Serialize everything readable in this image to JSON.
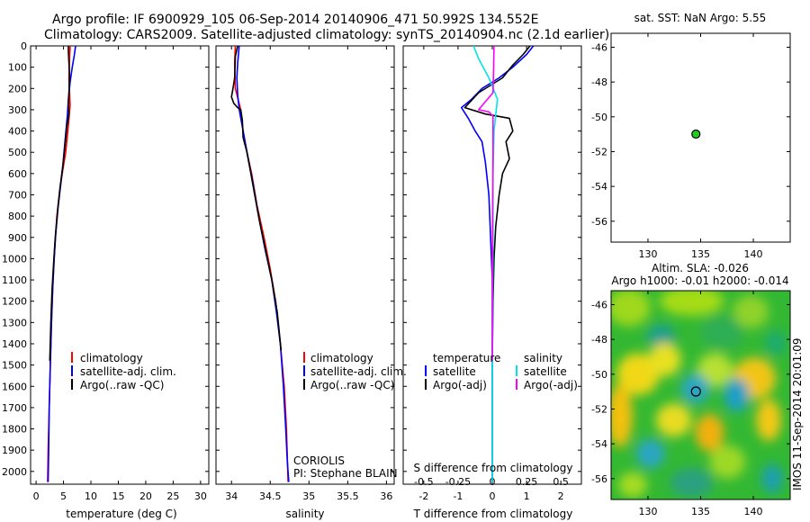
{
  "figure": {
    "title_line1": "Argo profile: IF 6900929_105 06-Sep-2014 20140906_471 50.992S 134.552E",
    "title_line2": "Climatology: CARS2009. Satellite-adjusted climatology: synTS_20140904.nc (2.1d earlier)",
    "side_stamp": "IMOS 11-Sep-2014 20:01:09",
    "colors": {
      "black": "#000000",
      "red": "#ff0000",
      "blue": "#0000ff",
      "cyan": "#00e5e5",
      "magenta": "#ff00ff",
      "green": "#22cc22"
    }
  },
  "chart_data": [
    {
      "id": "temperature",
      "type": "line",
      "xlabel": "temperature (deg C)",
      "ylabel": "",
      "xlim": [
        -1,
        31.5
      ],
      "ylim": [
        2060,
        0
      ],
      "xticks": [
        "0",
        "5",
        "10",
        "15",
        "20",
        "25",
        "30"
      ],
      "xtick_values": [
        0,
        5,
        10,
        15,
        20,
        25,
        30
      ],
      "yticks": [
        "0",
        "100",
        "200",
        "300",
        "400",
        "500",
        "600",
        "700",
        "800",
        "900",
        "1000",
        "1100",
        "1200",
        "1300",
        "1400",
        "1500",
        "1600",
        "1700",
        "1800",
        "1900",
        "2000"
      ],
      "legend": [
        "climatology",
        "satellite-adj. clim.",
        "Argo(..raw -QC)"
      ],
      "series": [
        {
          "name": "climatology",
          "color": "red",
          "points": [
            [
              6.2,
              0
            ],
            [
              6.1,
              60
            ],
            [
              6.0,
              150
            ],
            [
              6.2,
              280
            ],
            [
              5.8,
              400
            ],
            [
              5.4,
              500
            ],
            [
              4.9,
              580
            ],
            [
              4.3,
              680
            ],
            [
              3.8,
              800
            ],
            [
              3.4,
              950
            ],
            [
              3.1,
              1100
            ],
            [
              2.8,
              1300
            ],
            [
              2.6,
              1500
            ],
            [
              2.4,
              1700
            ],
            [
              2.2,
              1900
            ],
            [
              2.1,
              2050
            ]
          ]
        },
        {
          "name": "satellite-adj. clim.",
          "color": "blue",
          "points": [
            [
              7.2,
              0
            ],
            [
              7.0,
              40
            ],
            [
              6.6,
              100
            ],
            [
              6.2,
              170
            ],
            [
              5.9,
              250
            ],
            [
              5.7,
              330
            ],
            [
              5.3,
              440
            ],
            [
              4.9,
              560
            ],
            [
              4.5,
              650
            ],
            [
              4.0,
              760
            ],
            [
              3.6,
              880
            ],
            [
              3.3,
              1000
            ],
            [
              3.0,
              1150
            ],
            [
              2.8,
              1300
            ],
            [
              2.6,
              1500
            ],
            [
              2.4,
              1700
            ],
            [
              2.3,
              1900
            ],
            [
              2.2,
              2050
            ]
          ]
        },
        {
          "name": "Argo(..raw -QC)",
          "color": "black",
          "points": [
            [
              5.9,
              0
            ],
            [
              5.9,
              30
            ],
            [
              6.0,
              80
            ],
            [
              6.1,
              140
            ],
            [
              6.0,
              220
            ],
            [
              5.9,
              280
            ],
            [
              6.0,
              320
            ],
            [
              5.6,
              380
            ],
            [
              5.3,
              460
            ],
            [
              4.9,
              560
            ],
            [
              4.4,
              660
            ],
            [
              3.9,
              780
            ],
            [
              3.5,
              900
            ],
            [
              3.2,
              1020
            ],
            [
              2.9,
              1150
            ],
            [
              2.7,
              1300
            ],
            [
              2.5,
              1480
            ]
          ]
        }
      ]
    },
    {
      "id": "salinity",
      "type": "line",
      "xlabel": "salinity",
      "ylabel": "",
      "xlim": [
        33.8,
        36.1
      ],
      "ylim": [
        2060,
        0
      ],
      "xticks": [
        "34",
        "34.5",
        "35",
        "35.5",
        "36"
      ],
      "xtick_values": [
        34,
        34.5,
        35,
        35.5,
        36
      ],
      "legend": [
        "climatology",
        "satellite-adj. clim.",
        "Argo(..raw -QC)"
      ],
      "annotations": [
        "CORIOLIS",
        "PI: Stephane BLAIN"
      ],
      "series": [
        {
          "name": "climatology",
          "color": "red",
          "points": [
            [
              34.05,
              0
            ],
            [
              34.04,
              80
            ],
            [
              34.05,
              200
            ],
            [
              34.12,
              300
            ],
            [
              34.15,
              400
            ],
            [
              34.2,
              500
            ],
            [
              34.26,
              600
            ],
            [
              34.33,
              750
            ],
            [
              34.42,
              900
            ],
            [
              34.5,
              1050
            ],
            [
              34.57,
              1200
            ],
            [
              34.63,
              1400
            ],
            [
              34.68,
              1600
            ],
            [
              34.71,
              1800
            ],
            [
              34.73,
              2050
            ]
          ]
        },
        {
          "name": "satellite-adj. clim.",
          "color": "blue",
          "points": [
            [
              34.1,
              0
            ],
            [
              34.08,
              80
            ],
            [
              34.07,
              150
            ],
            [
              34.08,
              230
            ],
            [
              34.1,
              300
            ],
            [
              34.14,
              380
            ],
            [
              34.18,
              460
            ],
            [
              34.22,
              540
            ],
            [
              34.28,
              650
            ],
            [
              34.35,
              800
            ],
            [
              34.43,
              950
            ],
            [
              34.52,
              1100
            ],
            [
              34.58,
              1250
            ],
            [
              34.63,
              1400
            ],
            [
              34.67,
              1600
            ],
            [
              34.7,
              1800
            ],
            [
              34.72,
              1950
            ],
            [
              34.74,
              2050
            ]
          ]
        },
        {
          "name": "Argo(..raw -QC)",
          "color": "black",
          "points": [
            [
              34.08,
              0
            ],
            [
              34.05,
              50
            ],
            [
              34.04,
              150
            ],
            [
              34.02,
              200
            ],
            [
              34.0,
              240
            ],
            [
              34.03,
              270
            ],
            [
              34.08,
              290
            ],
            [
              34.12,
              300
            ],
            [
              34.14,
              350
            ],
            [
              34.15,
              430
            ],
            [
              34.2,
              500
            ],
            [
              34.24,
              580
            ],
            [
              34.3,
              700
            ],
            [
              34.36,
              820
            ],
            [
              34.44,
              960
            ],
            [
              34.52,
              1100
            ],
            [
              34.59,
              1250
            ],
            [
              34.64,
              1430
            ]
          ]
        }
      ]
    },
    {
      "id": "difference",
      "type": "line",
      "xlabel": "T difference from climatology",
      "xlabel_top": "S difference from climatology",
      "xlim": [
        -2.6,
        2.6
      ],
      "ylim": [
        2060,
        0
      ],
      "xticks": [
        "-2",
        "-1",
        "0",
        "1",
        "2"
      ],
      "xtick_values": [
        -2,
        -1,
        0,
        1,
        2
      ],
      "xticks_top": [
        "-0.5",
        "-0.25",
        "0",
        "0.25",
        "0.5"
      ],
      "legend_titles": [
        "temperature",
        "salinity"
      ],
      "legend_temperature": [
        "satellite",
        "Argo(-adj)"
      ],
      "legend_salinity": [
        "satellite",
        "Argo(-adj)"
      ],
      "series": [
        {
          "name": "temperature satellite",
          "color": "blue",
          "points": [
            [
              1.2,
              0
            ],
            [
              1.0,
              40
            ],
            [
              0.6,
              100
            ],
            [
              0.2,
              150
            ],
            [
              -0.3,
              200
            ],
            [
              -0.6,
              250
            ],
            [
              -0.9,
              290
            ],
            [
              -0.7,
              340
            ],
            [
              -0.5,
              400
            ],
            [
              -0.3,
              450
            ],
            [
              -0.2,
              550
            ],
            [
              -0.1,
              700
            ],
            [
              -0.05,
              900
            ],
            [
              0,
              1100
            ],
            [
              0,
              1500
            ],
            [
              0,
              2050
            ]
          ]
        },
        {
          "name": "temperature Argo(-adj)",
          "color": "black",
          "points": [
            [
              1.1,
              0
            ],
            [
              0.9,
              40
            ],
            [
              0.6,
              90
            ],
            [
              0.3,
              150
            ],
            [
              -0.4,
              220
            ],
            [
              -0.8,
              290
            ],
            [
              -0.2,
              320
            ],
            [
              0.5,
              340
            ],
            [
              0.6,
              400
            ],
            [
              0.4,
              450
            ],
            [
              0.5,
              530
            ],
            [
              0.3,
              600
            ],
            [
              0.2,
              700
            ],
            [
              0.1,
              850
            ],
            [
              0.05,
              1000
            ],
            [
              0.02,
              1200
            ],
            [
              0,
              1480
            ]
          ]
        },
        {
          "name": "salinity satellite",
          "color": "cyan",
          "points": [
            [
              -0.55,
              0
            ],
            [
              -0.4,
              60
            ],
            [
              -0.1,
              150
            ],
            [
              0.15,
              250
            ],
            [
              0.05,
              400
            ],
            [
              0.02,
              600
            ],
            [
              0.02,
              900
            ],
            [
              0.01,
              1200
            ],
            [
              0,
              1600
            ],
            [
              0,
              2050
            ]
          ]
        },
        {
          "name": "salinity Argo(-adj)",
          "color": "magenta",
          "points": [
            [
              0.05,
              0
            ],
            [
              0.04,
              100
            ],
            [
              0.02,
              220
            ],
            [
              -0.4,
              300
            ],
            [
              -0.1,
              310
            ],
            [
              0.02,
              330
            ],
            [
              0.02,
              500
            ],
            [
              0.01,
              800
            ],
            [
              0,
              1100
            ],
            [
              0,
              1480
            ]
          ]
        }
      ]
    },
    {
      "id": "sst_map",
      "type": "scatter",
      "title": "sat. SST: NaN Argo: 5.55",
      "xlim": [
        126.5,
        143.5
      ],
      "ylim": [
        -57.2,
        -45.2
      ],
      "xticks": [
        "130",
        "135",
        "140"
      ],
      "xtick_values": [
        130,
        135,
        140
      ],
      "yticks": [
        "-46",
        "-48",
        "-50",
        "-52",
        "-54",
        "-56"
      ],
      "ytick_values": [
        -46,
        -48,
        -50,
        -52,
        -54,
        -56
      ],
      "points": [
        [
          134.552,
          -50.992
        ]
      ]
    },
    {
      "id": "sla_map",
      "type": "heatmap",
      "title_line1": "Altim. SLA: -0.026",
      "title_line2": "Argo h1000: -0.01 h2000: -0.014",
      "xlim": [
        126.5,
        143.5
      ],
      "ylim": [
        -57.2,
        -45.2
      ],
      "xticks": [
        "130",
        "135",
        "140"
      ],
      "xtick_values": [
        130,
        135,
        140
      ],
      "yticks": [
        "-46",
        "-48",
        "-50",
        "-52",
        "-54",
        "-56"
      ],
      "ytick_values": [
        -46,
        -48,
        -50,
        -52,
        -54,
        -56
      ],
      "points": [
        [
          134.552,
          -50.992
        ]
      ]
    }
  ]
}
